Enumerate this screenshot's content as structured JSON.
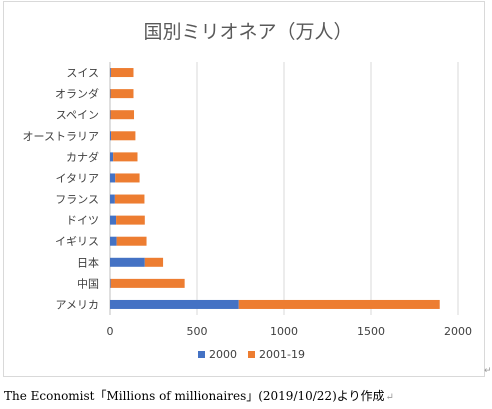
{
  "source_note": "The Economist「Millions of millionaires」(2019/10/22)より作成",
  "paragraph_mark": "↵",
  "frame_mark": "↵",
  "colors": {
    "series_2000": "#4472c4",
    "series_2001_19": "#ed7d31",
    "grid": "#d9d9d9",
    "title": "#595959",
    "text": "#404040"
  },
  "chart_data": {
    "type": "bar",
    "orientation": "horizontal",
    "stacked": true,
    "title": "国別ミリオネア（万人）",
    "xlabel": "",
    "ylabel": "",
    "xlim": [
      0,
      2000
    ],
    "x_ticks": [
      0,
      500,
      1000,
      1500,
      2000
    ],
    "grid": true,
    "legend_position": "bottom",
    "categories": [
      "スイス",
      "オランダ",
      "スペイン",
      "オーストラリア",
      "カナダ",
      "イタリア",
      "フランス",
      "ドイツ",
      "イギリス",
      "日本",
      "中国",
      "アメリカ"
    ],
    "series": [
      {
        "name": "2000",
        "values": [
          5,
          3,
          3,
          6,
          18,
          30,
          28,
          35,
          38,
          200,
          4,
          740
        ]
      },
      {
        "name": "2001-19",
        "values": [
          130,
          132,
          135,
          140,
          140,
          140,
          170,
          165,
          172,
          105,
          425,
          1155
        ]
      }
    ]
  }
}
